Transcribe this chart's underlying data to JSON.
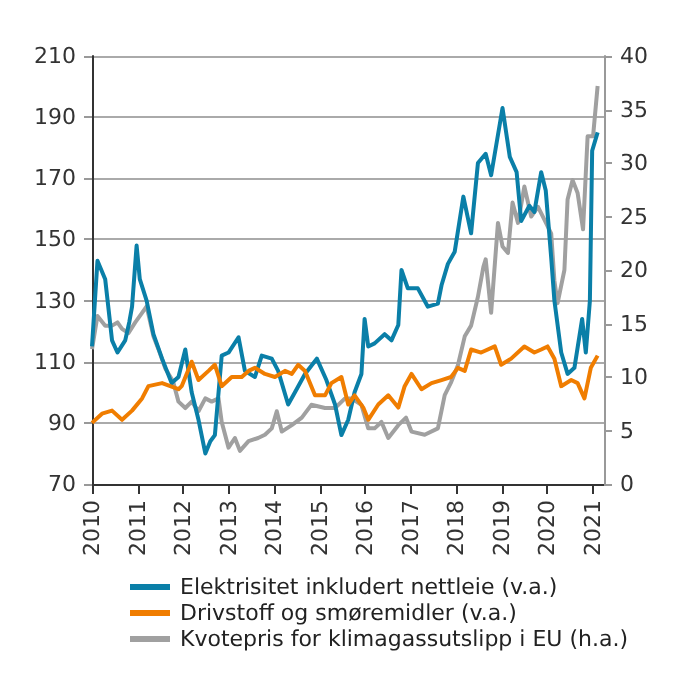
{
  "chart_data": {
    "type": "line",
    "xlim": [
      2010,
      2021.25
    ],
    "xticks": [
      2010,
      2011,
      2012,
      2013,
      2014,
      2015,
      2016,
      2017,
      2018,
      2019,
      2020,
      2021
    ],
    "ylim": [
      70,
      210
    ],
    "yticks": [
      70,
      90,
      110,
      130,
      150,
      170,
      190,
      210
    ],
    "y2lim": [
      0,
      40
    ],
    "y2ticks": [
      0,
      5,
      10,
      15,
      20,
      25,
      30,
      35,
      40
    ],
    "grid": "y",
    "legend": "bottom",
    "marker": "none",
    "line_style": "solid",
    "series": [
      {
        "name": "Elektrisitet inkludert nettleie (v.a.)",
        "color": "#0a7fa8",
        "x": [
          2010.0,
          2010.12,
          2010.29,
          2010.44,
          2010.56,
          2010.73,
          2010.82,
          2010.88,
          2010.98,
          2011.05,
          2011.2,
          2011.35,
          2011.54,
          2011.75,
          2011.9,
          2012.05,
          2012.19,
          2012.34,
          2012.49,
          2012.6,
          2012.7,
          2012.85,
          2013.0,
          2013.22,
          2013.36,
          2013.58,
          2013.73,
          2013.95,
          2014.09,
          2014.31,
          2014.46,
          2014.68,
          2014.94,
          2015.15,
          2015.34,
          2015.48,
          2015.63,
          2015.77,
          2015.92,
          2015.99,
          2016.07,
          2016.21,
          2016.43,
          2016.58,
          2016.73,
          2016.8,
          2016.94,
          2017.16,
          2017.38,
          2017.6,
          2017.68,
          2017.82,
          2017.97,
          2018.16,
          2018.33,
          2018.48,
          2018.65,
          2018.77,
          2019.02,
          2019.18,
          2019.33,
          2019.43,
          2019.61,
          2019.72,
          2019.87,
          2019.97,
          2020.09,
          2020.16,
          2020.31,
          2020.45,
          2020.6,
          2020.77,
          2020.85,
          2020.94,
          2020.99,
          2021.11
        ],
        "values": [
          115,
          143,
          137,
          117,
          113,
          117,
          123,
          128,
          148,
          137,
          130,
          119,
          111,
          103,
          105,
          114,
          100,
          91,
          80,
          84,
          86,
          112,
          113,
          118,
          107,
          105,
          112,
          111,
          107,
          96,
          100,
          106,
          111,
          104,
          96,
          86,
          91,
          100,
          106,
          124,
          115,
          116,
          119,
          117,
          122,
          140,
          134,
          134,
          128,
          129,
          135,
          142,
          146,
          164,
          152,
          175,
          178,
          171,
          193,
          177,
          172,
          156,
          161,
          159,
          172,
          166,
          144,
          130,
          113,
          106,
          108,
          124,
          113,
          130,
          179,
          185
        ]
      },
      {
        "name": "Drivstoff og smøremidler (v.a.)",
        "color": "#f07d00",
        "x": [
          2010.0,
          2010.22,
          2010.44,
          2010.66,
          2010.88,
          2011.1,
          2011.24,
          2011.54,
          2011.9,
          2011.97,
          2012.19,
          2012.34,
          2012.56,
          2012.7,
          2012.85,
          2013.07,
          2013.29,
          2013.44,
          2013.58,
          2013.8,
          2014.02,
          2014.24,
          2014.39,
          2014.53,
          2014.68,
          2014.9,
          2015.12,
          2015.26,
          2015.48,
          2015.63,
          2015.77,
          2015.96,
          2016.07,
          2016.29,
          2016.51,
          2016.73,
          2016.87,
          2017.02,
          2017.24,
          2017.46,
          2017.68,
          2017.89,
          2018.04,
          2018.19,
          2018.33,
          2018.55,
          2018.85,
          2018.99,
          2019.21,
          2019.5,
          2019.72,
          2019.87,
          2020.01,
          2020.16,
          2020.31,
          2020.53,
          2020.67,
          2020.82,
          2020.96,
          2021.11
        ],
        "values": [
          90,
          93,
          94,
          91,
          94,
          98,
          102,
          103,
          101,
          102,
          110,
          104,
          107,
          109,
          102,
          105,
          105,
          107,
          108,
          106,
          105,
          107,
          106,
          109,
          107,
          99,
          99,
          103,
          105,
          96,
          99,
          95,
          91,
          96,
          99,
          95,
          102,
          106,
          101,
          103,
          104,
          105,
          108,
          107,
          114,
          113,
          115,
          109,
          111,
          115,
          113,
          114,
          115,
          111,
          102,
          104,
          103,
          98,
          108,
          112
        ]
      },
      {
        "name": "Kvotepris for klimagassutslipp i EU (h.a.)",
        "color": "#a0a0a0",
        "axis": "y2",
        "x": [
          2010.0,
          2010.12,
          2010.29,
          2010.44,
          2010.56,
          2010.66,
          2010.8,
          2010.95,
          2011.1,
          2011.2,
          2011.35,
          2011.46,
          2011.61,
          2011.78,
          2011.9,
          2012.05,
          2012.19,
          2012.34,
          2012.49,
          2012.63,
          2012.78,
          2012.85,
          2013.0,
          2013.14,
          2013.25,
          2013.44,
          2013.65,
          2013.8,
          2013.95,
          2014.06,
          2014.17,
          2014.39,
          2014.61,
          2014.82,
          2015.12,
          2015.34,
          2015.56,
          2015.7,
          2015.92,
          2016.07,
          2016.21,
          2016.36,
          2016.51,
          2016.73,
          2016.9,
          2017.02,
          2017.31,
          2017.6,
          2017.75,
          2017.89,
          2018.04,
          2018.19,
          2018.33,
          2018.48,
          2018.6,
          2018.65,
          2018.77,
          2018.92,
          2019.02,
          2019.14,
          2019.24,
          2019.36,
          2019.5,
          2019.65,
          2019.8,
          2019.94,
          2020.09,
          2020.16,
          2020.23,
          2020.38,
          2020.45,
          2020.56,
          2020.67,
          2020.79,
          2020.89,
          2021.01,
          2021.11
        ],
        "values": [
          12.6,
          15.7,
          14.8,
          14.8,
          15.1,
          14.5,
          14.1,
          15.1,
          16.0,
          16.6,
          13.8,
          12.6,
          10.8,
          9.6,
          7.7,
          7.1,
          7.7,
          6.8,
          8.0,
          7.7,
          8.0,
          5.8,
          3.4,
          4.3,
          3.1,
          4.0,
          4.3,
          4.6,
          5.2,
          6.8,
          4.9,
          5.5,
          6.2,
          7.4,
          7.1,
          7.1,
          8.0,
          8.0,
          7.4,
          5.2,
          5.2,
          5.8,
          4.3,
          5.5,
          6.2,
          4.9,
          4.6,
          5.2,
          8.3,
          9.5,
          11.1,
          13.8,
          14.8,
          17.5,
          20.3,
          21.0,
          16.0,
          24.4,
          22.2,
          21.6,
          26.3,
          24.4,
          27.8,
          25.0,
          25.9,
          24.7,
          23.4,
          19.0,
          16.9,
          20.0,
          26.6,
          28.4,
          27.2,
          23.8,
          32.5,
          32.5,
          37.2
        ]
      }
    ]
  }
}
